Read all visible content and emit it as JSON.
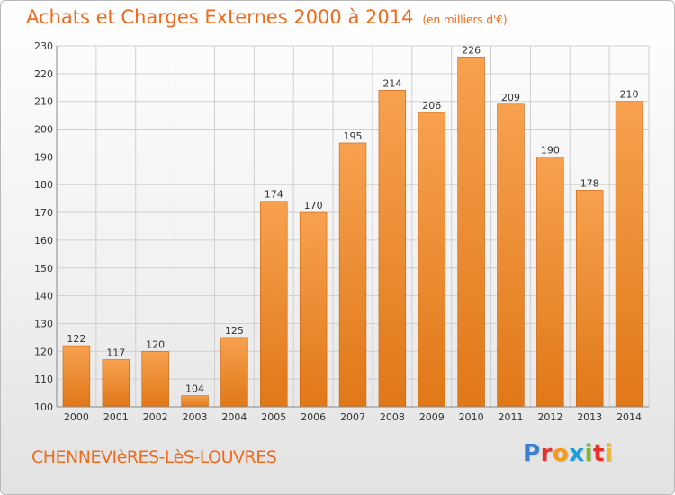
{
  "header": {
    "title": "Achats et Charges Externes 2000 à 2014",
    "unit": "(en milliers d'€)"
  },
  "footer": {
    "city": "CHENNEVIèRES-LèS-LOUVRES",
    "logo": {
      "text": "Proxiti",
      "letter_colors": [
        "#3a7fd0",
        "#e5322d",
        "#f39a1e",
        "#1b9fd9",
        "#7ab929",
        "#e5322d",
        "#f3b51e"
      ]
    }
  },
  "colors": {
    "bar_top": "#f7a14f",
    "bar_bottom": "#e07818",
    "bar_edge": "#c8620f",
    "grid": "#cfcfcf",
    "title": "#f06a1c"
  },
  "chart_data": {
    "type": "bar",
    "categories": [
      "2000",
      "2001",
      "2002",
      "2003",
      "2004",
      "2005",
      "2006",
      "2007",
      "2008",
      "2009",
      "2010",
      "2011",
      "2012",
      "2013",
      "2014"
    ],
    "values": [
      122,
      117,
      120,
      104,
      125,
      174,
      170,
      195,
      214,
      206,
      226,
      209,
      190,
      178,
      210
    ],
    "title": "Achats et Charges Externes 2000 à 2014",
    "ylim": [
      100,
      230
    ],
    "yticks": [
      100,
      110,
      120,
      130,
      140,
      150,
      160,
      170,
      180,
      190,
      200,
      210,
      220,
      230
    ],
    "grid": true,
    "data_labels": true
  }
}
